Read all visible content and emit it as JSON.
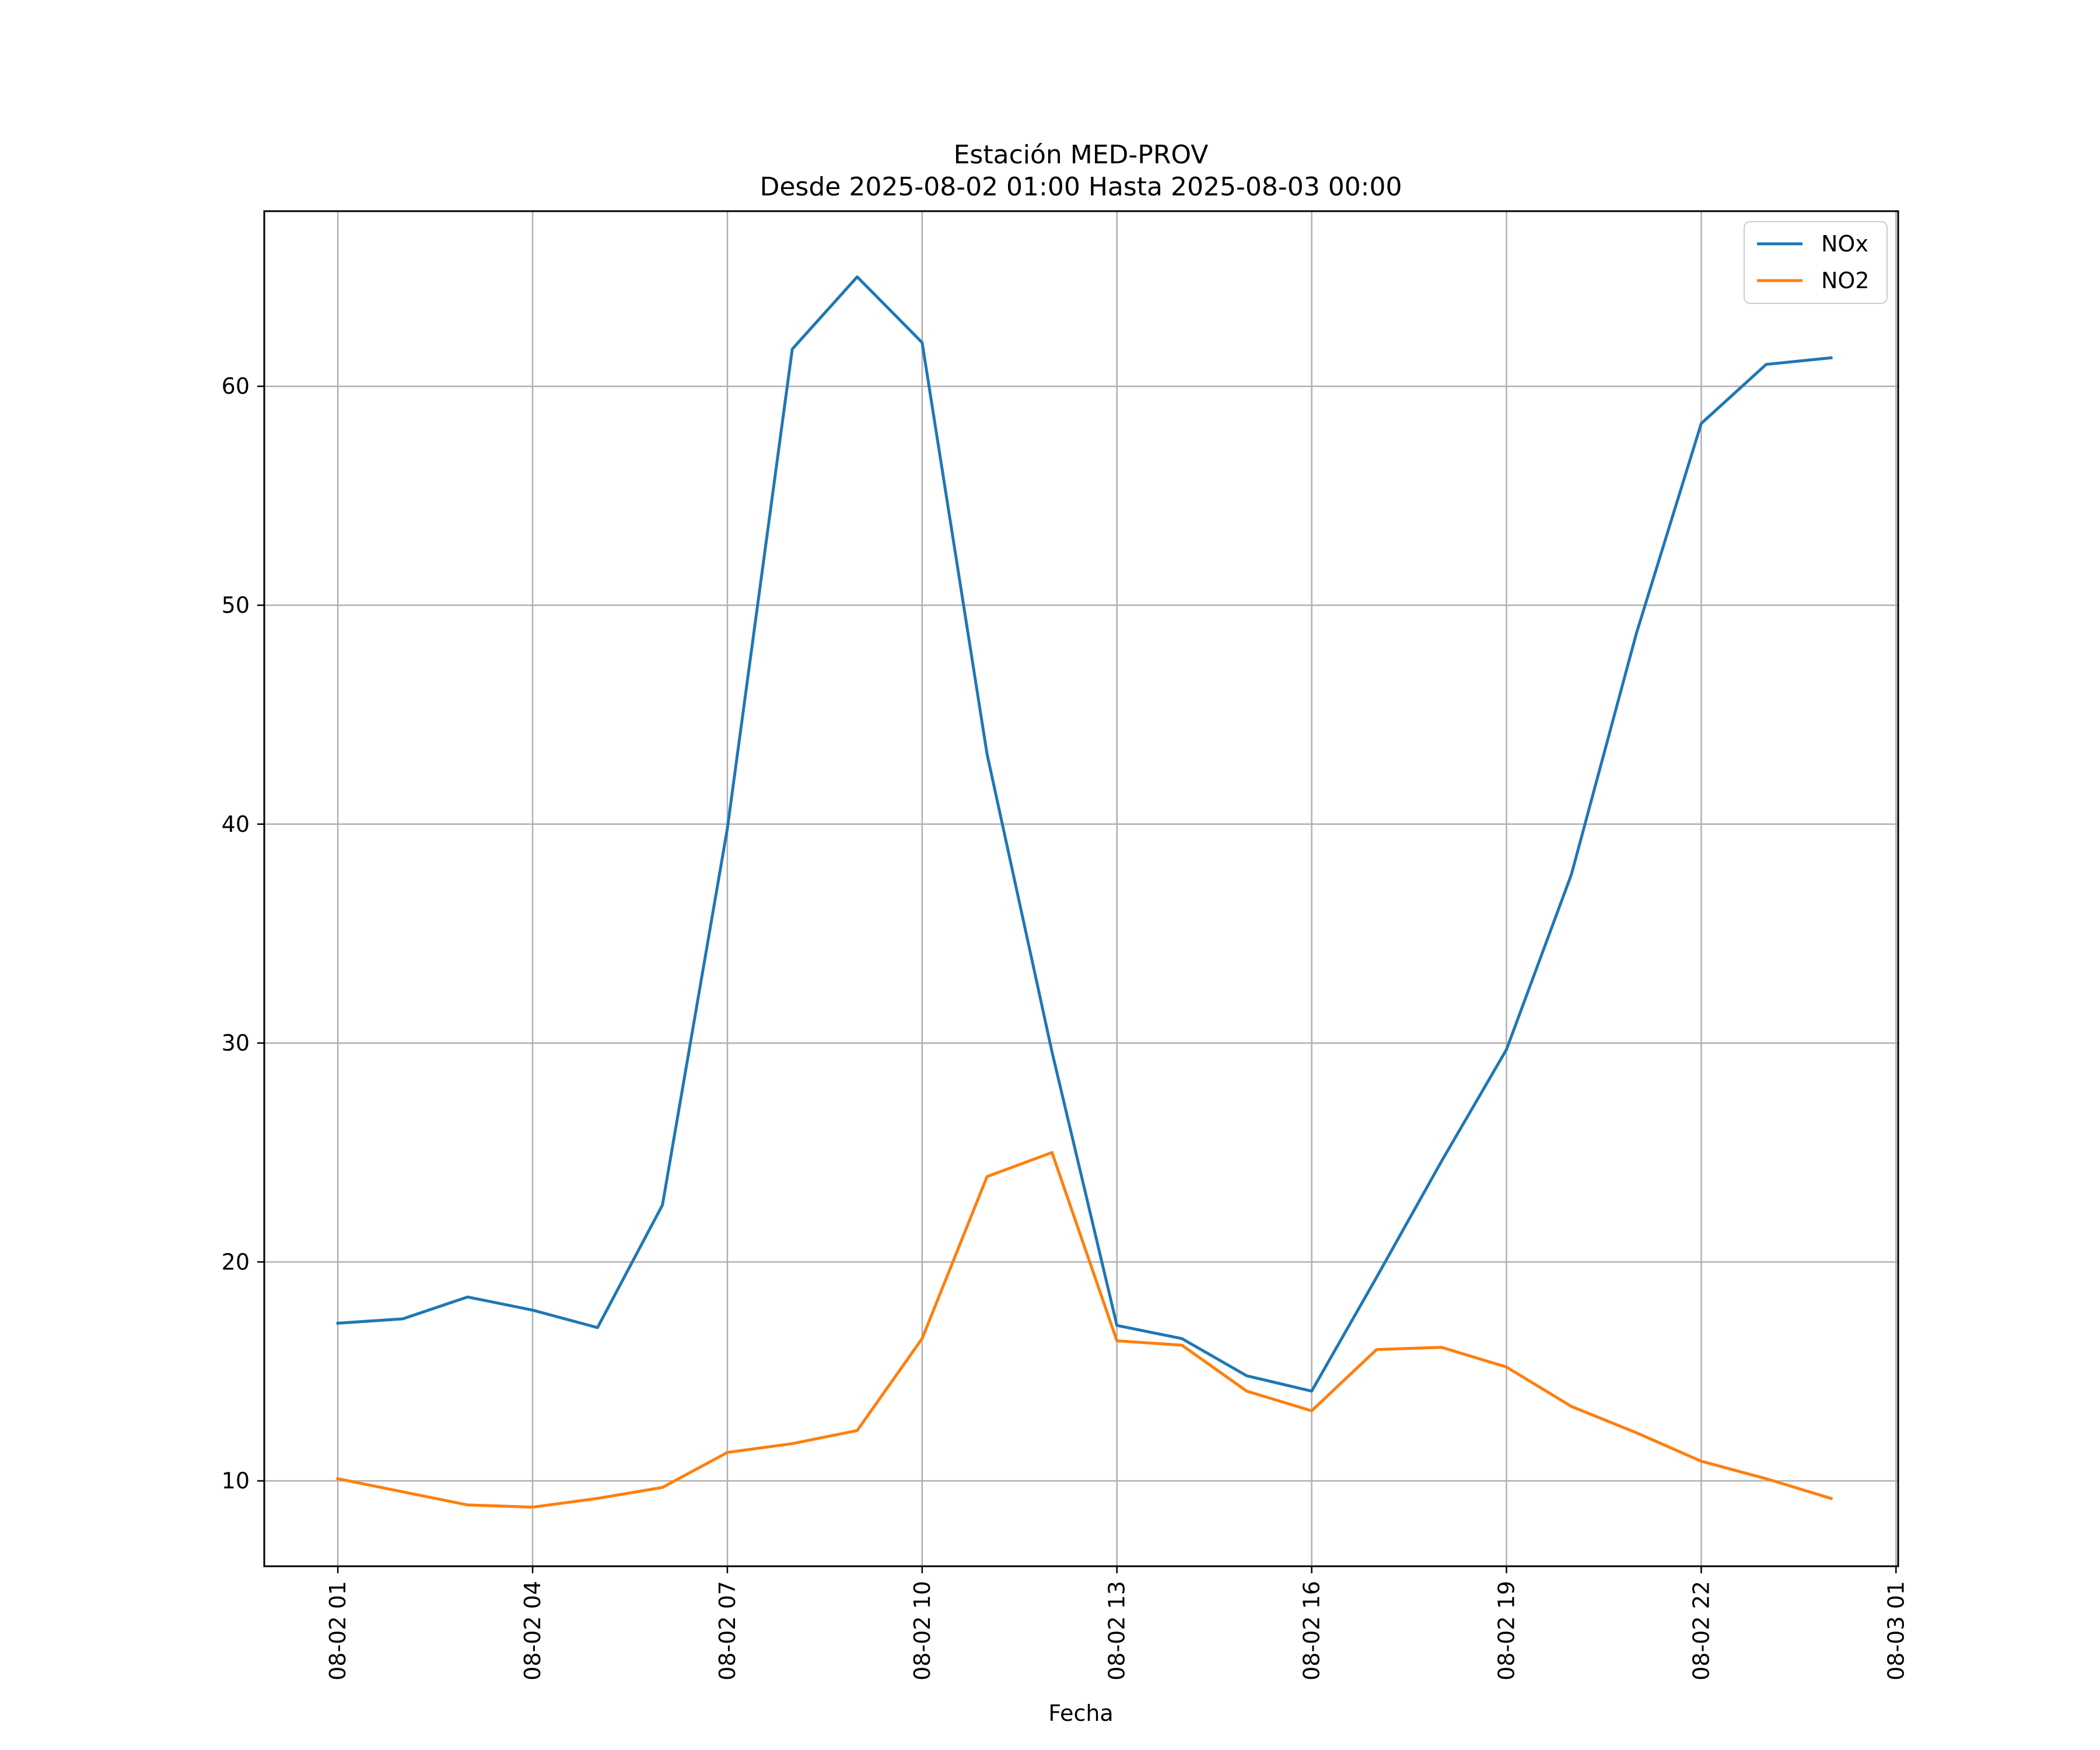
{
  "chart_data": {
    "type": "line",
    "title": "Estación MED-PROV",
    "subtitle": "Desde 2025-08-02 01:00 Hasta 2025-08-03 00:00",
    "xlabel": "Fecha",
    "ylabel": "",
    "x": [
      "2025-08-02 01:00",
      "2025-08-02 02:00",
      "2025-08-02 03:00",
      "2025-08-02 04:00",
      "2025-08-02 05:00",
      "2025-08-02 06:00",
      "2025-08-02 07:00",
      "2025-08-02 08:00",
      "2025-08-02 09:00",
      "2025-08-02 10:00",
      "2025-08-02 11:00",
      "2025-08-02 12:00",
      "2025-08-02 13:00",
      "2025-08-02 14:00",
      "2025-08-02 15:00",
      "2025-08-02 16:00",
      "2025-08-02 17:00",
      "2025-08-02 18:00",
      "2025-08-02 19:00",
      "2025-08-02 20:00",
      "2025-08-02 21:00",
      "2025-08-02 22:00",
      "2025-08-02 23:00",
      "2025-08-03 00:00"
    ],
    "x_ticks": [
      {
        "value": "2025-08-02 01:00",
        "label": "08-02 01"
      },
      {
        "value": "2025-08-02 04:00",
        "label": "08-02 04"
      },
      {
        "value": "2025-08-02 07:00",
        "label": "08-02 07"
      },
      {
        "value": "2025-08-02 10:00",
        "label": "08-02 10"
      },
      {
        "value": "2025-08-02 13:00",
        "label": "08-02 13"
      },
      {
        "value": "2025-08-02 16:00",
        "label": "08-02 16"
      },
      {
        "value": "2025-08-02 19:00",
        "label": "08-02 19"
      },
      {
        "value": "2025-08-02 22:00",
        "label": "08-02 22"
      },
      {
        "value": "2025-08-03 01:00",
        "label": "08-03 01"
      }
    ],
    "xlim": [
      "2025-08-01 23:52",
      "2025-08-03 01:02"
    ],
    "y_ticks": [
      10,
      20,
      30,
      40,
      50,
      60
    ],
    "ylim": [
      6.1,
      68.0
    ],
    "grid": true,
    "legend_position": "top-right",
    "series": [
      {
        "name": "NOx",
        "color": "#1f77b4",
        "values": [
          17.2,
          17.4,
          18.4,
          17.8,
          17.0,
          22.6,
          39.8,
          61.7,
          65.0,
          62.0,
          43.2,
          29.6,
          17.1,
          16.5,
          14.8,
          14.1,
          19.3,
          24.6,
          29.7,
          37.7,
          48.7,
          58.3,
          61.0,
          61.3
        ]
      },
      {
        "name": "NO2",
        "color": "#ff7f0e",
        "values": [
          10.1,
          9.5,
          8.9,
          8.8,
          9.2,
          9.7,
          11.3,
          11.7,
          12.3,
          16.5,
          23.9,
          25.0,
          16.4,
          16.2,
          14.1,
          13.2,
          16.0,
          16.1,
          15.2,
          13.4,
          12.2,
          10.9,
          10.1,
          9.2
        ]
      }
    ]
  }
}
